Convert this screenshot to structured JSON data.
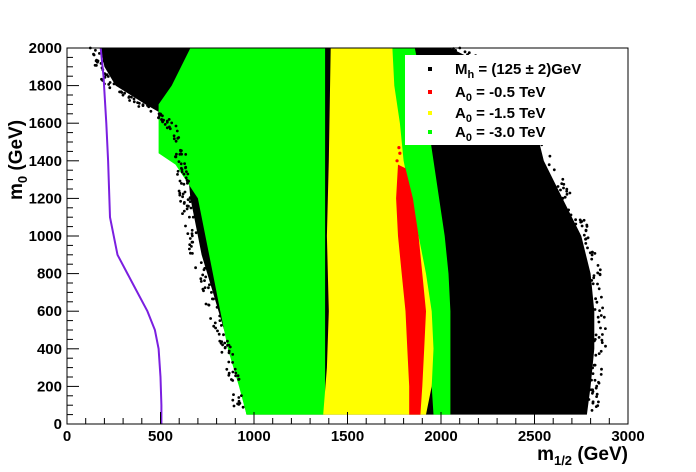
{
  "chart_data": {
    "type": "scatter",
    "xlabel": "m",
    "xlabel_sub": "1/2",
    "xlabel_unit": " (GeV)",
    "ylabel": "m",
    "ylabel_sub": "0",
    "ylabel_unit": " (GeV)",
    "xlim": [
      0,
      3000
    ],
    "ylim": [
      0,
      2000
    ],
    "x_ticks": [
      0,
      500,
      1000,
      1500,
      2000,
      2500,
      3000
    ],
    "y_ticks": [
      0,
      200,
      400,
      600,
      800,
      1000,
      1200,
      1400,
      1600,
      1800,
      2000
    ],
    "legend_position": "top-right",
    "grid": false,
    "series": [
      {
        "key": "black",
        "name_pre": "M",
        "name_sub": "h",
        "name_post": " = (125 ± 2)GeV",
        "color": "#000000",
        "region_left": [
          [
            180,
            2000
          ],
          [
            200,
            1900
          ],
          [
            260,
            1800
          ],
          [
            420,
            1700
          ],
          [
            560,
            1620
          ],
          [
            610,
            1550
          ],
          [
            640,
            1420
          ],
          [
            650,
            1300
          ],
          [
            660,
            1200
          ],
          [
            680,
            1100
          ],
          [
            720,
            900
          ],
          [
            780,
            700
          ],
          [
            840,
            500
          ],
          [
            880,
            400
          ],
          [
            920,
            250
          ],
          [
            960,
            50
          ]
        ],
        "region_right": [
          [
            2050,
            2000
          ],
          [
            2250,
            1900
          ],
          [
            2400,
            1800
          ],
          [
            2500,
            1600
          ],
          [
            2550,
            1400
          ],
          [
            2650,
            1200
          ],
          [
            2750,
            1000
          ],
          [
            2800,
            800
          ],
          [
            2820,
            600
          ],
          [
            2820,
            400
          ],
          [
            2800,
            200
          ],
          [
            2780,
            50
          ]
        ]
      },
      {
        "key": "green",
        "name_pre": "A",
        "name_sub": "0",
        "name_post": " = -3.0 TeV",
        "color": "#00ff00",
        "region": [
          [
            660,
            2000
          ],
          [
            1380,
            2000
          ],
          [
            1380,
            50
          ],
          [
            960,
            50
          ],
          [
            920,
            200
          ],
          [
            860,
            400
          ],
          [
            820,
            600
          ],
          [
            780,
            800
          ],
          [
            740,
            1000
          ],
          [
            700,
            1200
          ],
          [
            580,
            1380
          ],
          [
            490,
            1440
          ],
          [
            490,
            1700
          ],
          [
            560,
            1800
          ]
        ],
        "region_right": [
          [
            1720,
            2000
          ],
          [
            1860,
            2000
          ],
          [
            1900,
            1800
          ],
          [
            1930,
            1600
          ],
          [
            1960,
            1400
          ],
          [
            1990,
            1200
          ],
          [
            2020,
            1000
          ],
          [
            2040,
            800
          ],
          [
            2050,
            600
          ],
          [
            2050,
            50
          ],
          [
            1960,
            50
          ],
          [
            1950,
            200
          ],
          [
            1940,
            400
          ],
          [
            1920,
            600
          ],
          [
            1900,
            800
          ],
          [
            1860,
            1000
          ],
          [
            1820,
            1200
          ],
          [
            1780,
            1400
          ],
          [
            1750,
            1700
          ]
        ]
      },
      {
        "key": "yellow",
        "name_pre": "A",
        "name_sub": "0",
        "name_post": " = -1.5 TeV",
        "color": "#ffff00",
        "region": [
          [
            1410,
            2000
          ],
          [
            1740,
            2000
          ],
          [
            1750,
            1800
          ],
          [
            1780,
            1600
          ],
          [
            1800,
            1400
          ],
          [
            1840,
            1200
          ],
          [
            1880,
            1000
          ],
          [
            1920,
            800
          ],
          [
            1950,
            600
          ],
          [
            1960,
            400
          ],
          [
            1950,
            200
          ],
          [
            1920,
            50
          ],
          [
            1370,
            50
          ],
          [
            1390,
            300
          ],
          [
            1400,
            600
          ],
          [
            1390,
            1000
          ],
          [
            1400,
            1400
          ]
        ]
      },
      {
        "key": "red",
        "name_pre": "A",
        "name_sub": "0",
        "name_post": " = -0.5 TeV",
        "color": "#ff0000",
        "region": [
          [
            1770,
            1380
          ],
          [
            1810,
            1360
          ],
          [
            1850,
            1200
          ],
          [
            1880,
            1000
          ],
          [
            1900,
            800
          ],
          [
            1920,
            600
          ],
          [
            1910,
            400
          ],
          [
            1900,
            200
          ],
          [
            1890,
            50
          ],
          [
            1830,
            50
          ],
          [
            1830,
            200
          ],
          [
            1820,
            400
          ],
          [
            1810,
            600
          ],
          [
            1790,
            800
          ],
          [
            1770,
            1000
          ],
          [
            1760,
            1200
          ]
        ]
      }
    ],
    "limit_curve": {
      "color": "#7b1fe0",
      "points": [
        [
          180,
          2000
        ],
        [
          195,
          1850
        ],
        [
          210,
          1600
        ],
        [
          220,
          1400
        ],
        [
          230,
          1100
        ],
        [
          270,
          900
        ],
        [
          350,
          750
        ],
        [
          430,
          600
        ],
        [
          470,
          500
        ],
        [
          490,
          400
        ],
        [
          500,
          250
        ],
        [
          505,
          100
        ],
        [
          505,
          0
        ]
      ]
    }
  }
}
